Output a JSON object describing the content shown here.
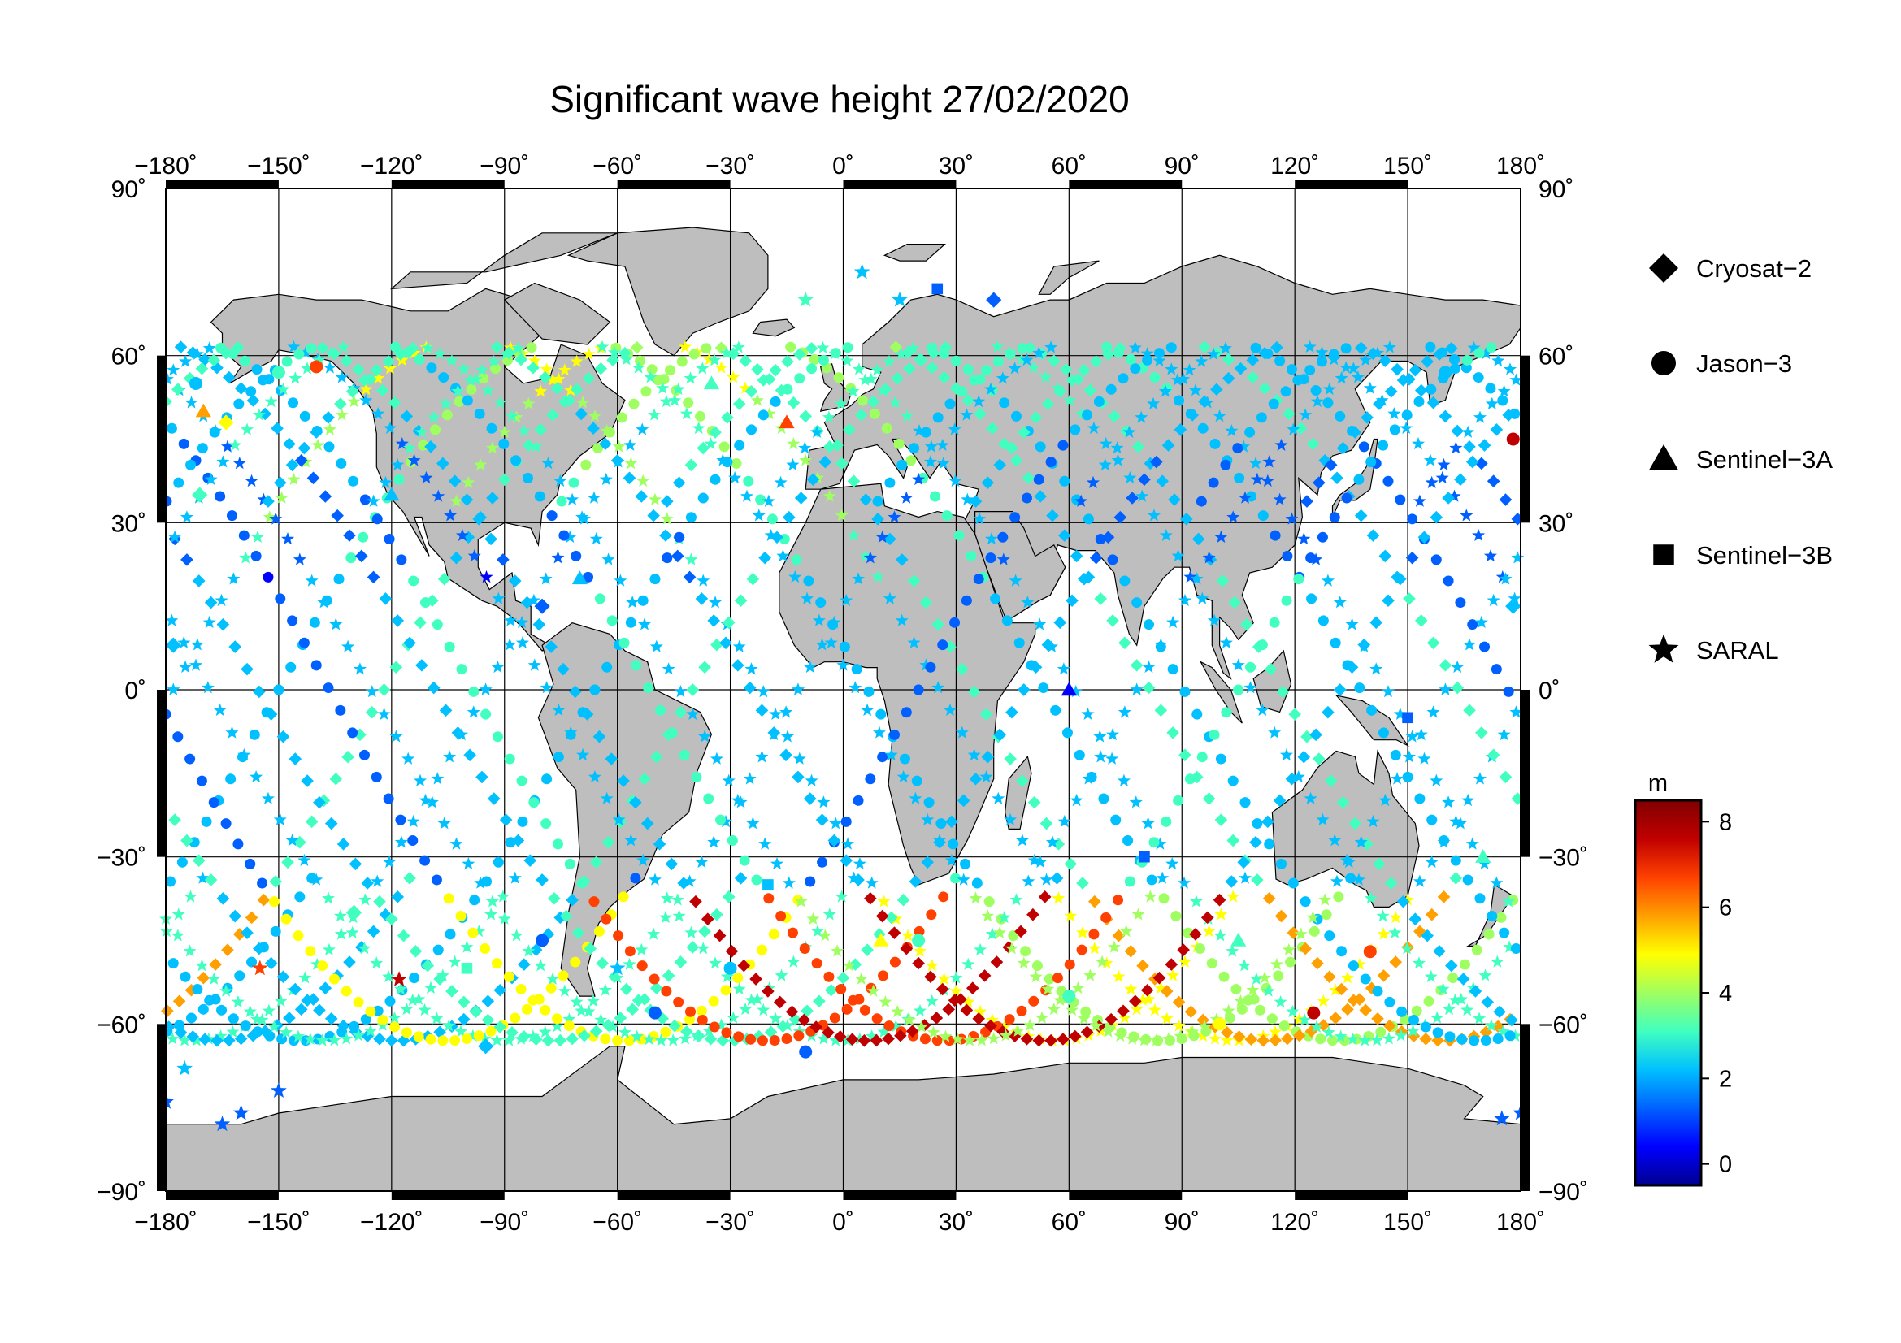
{
  "title": "Significant wave height 27/02/2020",
  "axes": {
    "lon_ticks": [
      "−180˚",
      "−150˚",
      "−120˚",
      "−90˚",
      "−60˚",
      "−30˚",
      "0˚",
      "30˚",
      "60˚",
      "90˚",
      "120˚",
      "150˚",
      "180˚"
    ],
    "lat_ticks_left": [
      "90˚",
      "60˚",
      "30˚",
      "0˚",
      "−30˚",
      "−60˚",
      "−90˚"
    ],
    "lat_ticks_right": [
      "90˚",
      "60˚",
      "30˚",
      "0˚",
      "−30˚",
      "−60˚",
      "−90˚"
    ]
  },
  "legend": {
    "items": [
      {
        "label": "Cryosat−2",
        "marker": "diamond"
      },
      {
        "label": "Jason−3",
        "marker": "circle"
      },
      {
        "label": "Sentinel−3A",
        "marker": "triangle"
      },
      {
        "label": "Sentinel−3B",
        "marker": "square"
      },
      {
        "label": "SARAL",
        "marker": "star"
      }
    ]
  },
  "colorbar": {
    "unit": "m",
    "ticks": [
      "8",
      "6",
      "4",
      "2",
      "0"
    ],
    "colors": [
      "#00008f",
      "#0000ff",
      "#0060ff",
      "#00c0ff",
      "#40ffc0",
      "#a0ff60",
      "#ffff00",
      "#ffa000",
      "#ff4000",
      "#c00000",
      "#800000"
    ]
  },
  "colors": {
    "land": "#bebebe",
    "ocean": "#ffffff",
    "grid": "#000000"
  },
  "chart_data": {
    "type": "scatter",
    "title": "Significant wave height 27/02/2020",
    "xlim": [
      -180,
      180
    ],
    "ylim": [
      -90,
      90
    ],
    "xticks": [
      -180,
      -150,
      -120,
      -90,
      -60,
      -30,
      0,
      30,
      60,
      90,
      120,
      150,
      180
    ],
    "yticks": [
      -90,
      -60,
      -30,
      0,
      30,
      60,
      90
    ],
    "color_scale": {
      "label": "m",
      "range": [
        -0.5,
        8.5
      ],
      "colormap": "jet"
    },
    "series": [
      {
        "name": "Cryosat−2",
        "marker": "diamond",
        "points": [
          {
            "lon": -178,
            "lat": 8,
            "swh": 2.5
          },
          {
            "lon": -171,
            "lat": 35,
            "swh": 3.2
          },
          {
            "lon": -164,
            "lat": 48,
            "swh": 4.5
          },
          {
            "lon": -130,
            "lat": -40,
            "swh": 3.0
          },
          {
            "lon": -95,
            "lat": -64,
            "swh": 2.0
          },
          {
            "lon": -80,
            "lat": 15,
            "swh": 1.2
          },
          {
            "lon": 40,
            "lat": 70,
            "swh": 1.0
          },
          {
            "lon": 178,
            "lat": 15,
            "swh": 2.2
          }
        ]
      },
      {
        "name": "Jason−3",
        "marker": "circle",
        "points": [
          {
            "lon": -172,
            "lat": 55,
            "swh": 2.5
          },
          {
            "lon": -140,
            "lat": 58,
            "swh": 6.5
          },
          {
            "lon": -150,
            "lat": 57,
            "swh": 3.0
          },
          {
            "lon": -80,
            "lat": -45,
            "swh": 1.5
          },
          {
            "lon": -50,
            "lat": -58,
            "swh": 1.0
          },
          {
            "lon": -30,
            "lat": -50,
            "swh": 2.5
          },
          {
            "lon": -10,
            "lat": -65,
            "swh": 1.0
          },
          {
            "lon": 20,
            "lat": -45,
            "swh": 3.5
          },
          {
            "lon": 60,
            "lat": -55,
            "swh": 3.5
          },
          {
            "lon": 100,
            "lat": -60,
            "swh": 4.5
          },
          {
            "lon": 125,
            "lat": -58,
            "swh": 7.5
          },
          {
            "lon": 140,
            "lat": -47,
            "swh": 7.0
          },
          {
            "lon": 160,
            "lat": 57,
            "swh": 2.0
          },
          {
            "lon": 178,
            "lat": 45,
            "swh": 7.8
          }
        ]
      },
      {
        "name": "Sentinel−3A",
        "marker": "triangle",
        "points": [
          {
            "lon": -170,
            "lat": 50,
            "swh": 6.0
          },
          {
            "lon": -120,
            "lat": 35,
            "swh": 2.5
          },
          {
            "lon": -70,
            "lat": 20,
            "swh": 2.0
          },
          {
            "lon": -35,
            "lat": 55,
            "swh": 3.5
          },
          {
            "lon": -15,
            "lat": 48,
            "swh": 7.0
          },
          {
            "lon": 10,
            "lat": -45,
            "swh": 5.0
          },
          {
            "lon": 60,
            "lat": 0,
            "swh": 0.8
          },
          {
            "lon": 105,
            "lat": -45,
            "swh": 3.5
          },
          {
            "lon": 170,
            "lat": -30,
            "swh": 3.0
          }
        ]
      },
      {
        "name": "Sentinel−3B",
        "marker": "square",
        "points": [
          {
            "lon": -100,
            "lat": -50,
            "swh": 3.0
          },
          {
            "lon": -20,
            "lat": -35,
            "swh": 2.0
          },
          {
            "lon": 25,
            "lat": 72,
            "swh": 1.0
          },
          {
            "lon": 80,
            "lat": -30,
            "swh": 1.5
          },
          {
            "lon": 150,
            "lat": -5,
            "swh": 1.0
          }
        ]
      },
      {
        "name": "SARAL",
        "marker": "star",
        "points": [
          {
            "lon": -180,
            "lat": -74,
            "swh": 1.0
          },
          {
            "lon": -165,
            "lat": -78,
            "swh": 1.0
          },
          {
            "lon": -160,
            "lat": -76,
            "swh": 1.0
          },
          {
            "lon": -150,
            "lat": -72,
            "swh": 1.0
          },
          {
            "lon": -175,
            "lat": -68,
            "swh": 1.8
          },
          {
            "lon": -155,
            "lat": -50,
            "swh": 7.0
          },
          {
            "lon": -118,
            "lat": -52,
            "swh": 7.5
          },
          {
            "lon": -60,
            "lat": -50,
            "swh": 2.0
          },
          {
            "lon": 5,
            "lat": 75,
            "swh": 2.0
          },
          {
            "lon": 15,
            "lat": 70,
            "swh": 2.5
          },
          {
            "lon": -10,
            "lat": 70,
            "swh": 3.0
          },
          {
            "lon": 180,
            "lat": -76,
            "swh": 1.0
          },
          {
            "lon": 175,
            "lat": -77,
            "swh": 1.0
          }
        ]
      }
    ]
  }
}
